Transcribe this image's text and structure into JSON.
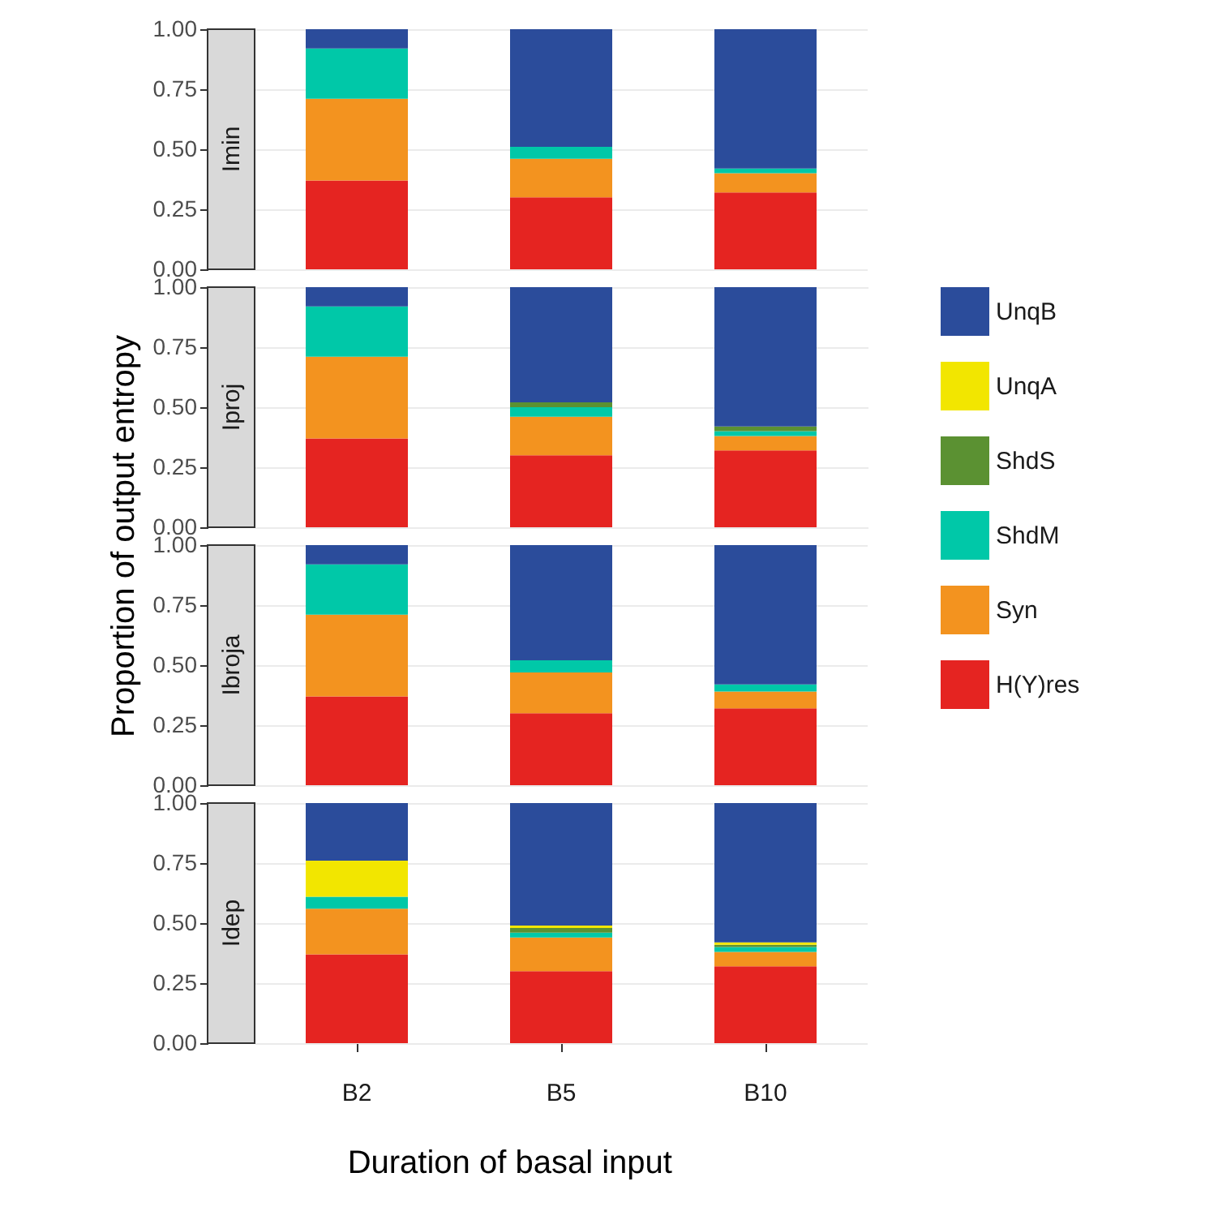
{
  "chart_data": [
    {
      "type": "bar",
      "title": "Imin",
      "stacked": true,
      "grid": "y",
      "tick_labels": "y",
      "categories": [
        null,
        null,
        null
      ],
      "ylim": [
        0,
        1
      ],
      "yticks": [
        {
          "value": 0,
          "label": "0.00"
        },
        {
          "value": 0.25,
          "label": "0.25"
        },
        {
          "value": 0.5,
          "label": "0.50"
        },
        {
          "value": 0.75,
          "label": "0.75"
        },
        {
          "value": 1,
          "label": "1.00"
        }
      ],
      "series": [
        {
          "color": "#e52421",
          "values": [
            0.37,
            0.3,
            0.32
          ]
        },
        {
          "color": "#f3931f",
          "values": [
            0.34,
            0.16,
            0.08
          ]
        },
        {
          "color": "#00c8a8",
          "values": [
            0.21,
            0.05,
            0.02
          ]
        },
        {
          "color": "#5b9132",
          "values": [
            0,
            0,
            0
          ]
        },
        {
          "color": "#f2e600",
          "values": [
            0,
            0,
            0
          ]
        },
        {
          "color": "#2b4c9b",
          "values": [
            0.08,
            0.49,
            0.58
          ]
        }
      ]
    },
    {
      "type": "bar",
      "title": "Iproj",
      "ylabel": "Proportion of output entropy",
      "legend": "right",
      "stacked": true,
      "grid": "y",
      "tick_labels": "y",
      "categories": [
        null,
        null,
        null
      ],
      "ylim": [
        0,
        1
      ],
      "yticks": [
        {
          "value": 0,
          "label": "0.00"
        },
        {
          "value": 0.25,
          "label": "0.25"
        },
        {
          "value": 0.5,
          "label": "0.50"
        },
        {
          "value": 0.75,
          "label": "0.75"
        },
        {
          "value": 1,
          "label": "1.00"
        }
      ],
      "series": [
        {
          "name": "H(Y)res",
          "color": "#e52421",
          "values": [
            0.37,
            0.3,
            0.32
          ]
        },
        {
          "name": "Syn",
          "color": "#f3931f",
          "values": [
            0.34,
            0.16,
            0.06
          ]
        },
        {
          "name": "ShdM",
          "color": "#00c8a8",
          "values": [
            0.21,
            0.04,
            0.02
          ]
        },
        {
          "name": "ShdS",
          "color": "#5b9132",
          "values": [
            0,
            0.02,
            0.02
          ]
        },
        {
          "name": "UnqA",
          "color": "#f2e600",
          "values": [
            0,
            0,
            0
          ]
        },
        {
          "name": "UnqB",
          "color": "#2b4c9b",
          "values": [
            0.08,
            0.48,
            0.58
          ]
        }
      ]
    },
    {
      "type": "bar",
      "title": "Ibroja",
      "stacked": true,
      "grid": "y",
      "tick_labels": "y",
      "categories": [
        null,
        null,
        null
      ],
      "ylim": [
        0,
        1
      ],
      "yticks": [
        {
          "value": 0,
          "label": "0.00"
        },
        {
          "value": 0.25,
          "label": "0.25"
        },
        {
          "value": 0.5,
          "label": "0.50"
        },
        {
          "value": 0.75,
          "label": "0.75"
        },
        {
          "value": 1,
          "label": "1.00"
        }
      ],
      "series": [
        {
          "color": "#e52421",
          "values": [
            0.37,
            0.3,
            0.32
          ]
        },
        {
          "color": "#f3931f",
          "values": [
            0.34,
            0.17,
            0.07
          ]
        },
        {
          "color": "#00c8a8",
          "values": [
            0.21,
            0.05,
            0.03
          ]
        },
        {
          "color": "#5b9132",
          "values": [
            0,
            0,
            0
          ]
        },
        {
          "color": "#f2e600",
          "values": [
            0,
            0,
            0
          ]
        },
        {
          "color": "#2b4c9b",
          "values": [
            0.08,
            0.48,
            0.58
          ]
        }
      ]
    },
    {
      "type": "bar",
      "title": "Idep",
      "xlabel": "Duration of basal input",
      "stacked": true,
      "grid": "y",
      "categories": [
        "B2",
        "B5",
        "B10"
      ],
      "ylim": [
        0,
        1
      ],
      "yticks": [
        {
          "value": 0,
          "label": "0.00"
        },
        {
          "value": 0.25,
          "label": "0.25"
        },
        {
          "value": 0.5,
          "label": "0.50"
        },
        {
          "value": 0.75,
          "label": "0.75"
        },
        {
          "value": 1,
          "label": "1.00"
        }
      ],
      "series": [
        {
          "color": "#e52421",
          "values": [
            0.37,
            0.3,
            0.32
          ]
        },
        {
          "color": "#f3931f",
          "values": [
            0.19,
            0.14,
            0.06
          ]
        },
        {
          "color": "#00c8a8",
          "values": [
            0.05,
            0.02,
            0.02
          ]
        },
        {
          "color": "#5b9132",
          "values": [
            0,
            0.02,
            0.01
          ]
        },
        {
          "color": "#f2e600",
          "values": [
            0.15,
            0.01,
            0.01
          ]
        },
        {
          "color": "#2b4c9b",
          "values": [
            0.24,
            0.51,
            0.58
          ]
        }
      ]
    }
  ]
}
